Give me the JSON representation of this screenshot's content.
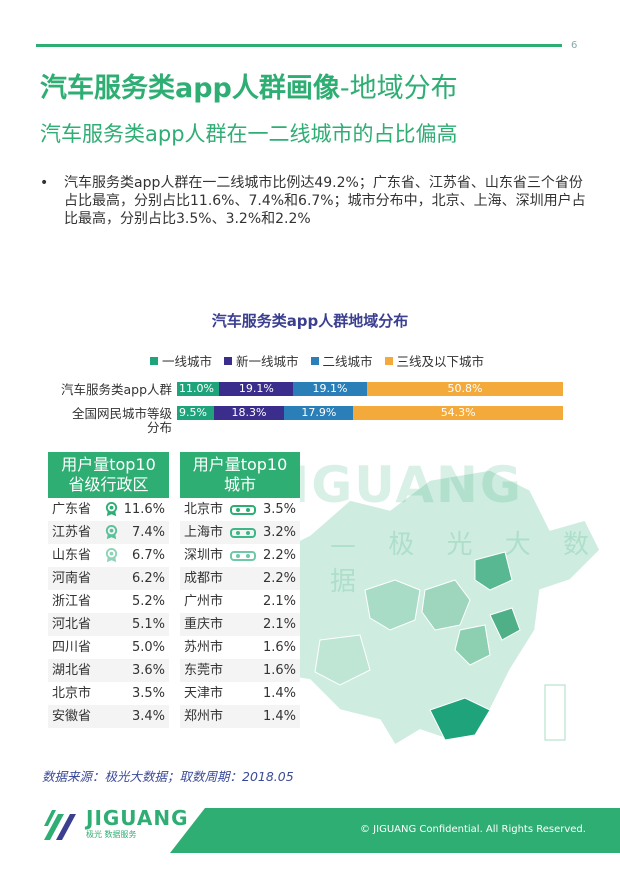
{
  "page_number": "6",
  "title_bold": "汽车服务类app人群画像",
  "title_light": "-地域分布",
  "subtitle": "汽车服务类app人群在一二线城市的占比偏高",
  "bullet_marker": "•",
  "bullet_text": "汽车服务类app人群在一二线城市比例达49.2%；广东省、江苏省、山东省三个省份占比最高，分别占比11.6%、7.4%和6.7%；城市分布中，北京、上海、深圳用户占比最高，分别占比3.5%、3.2%和2.2%",
  "watermark": {
    "text": "JIGUANG",
    "sub": "— 极 光 大 数 据"
  },
  "chart_data": {
    "type": "bar",
    "stacked": true,
    "orientation": "horizontal",
    "title": "汽车服务类app人群地域分布",
    "categories": [
      "汽车服务类app人群",
      "全国网民城市等级分布"
    ],
    "series": [
      {
        "name": "一线城市",
        "color": "#1fa37a",
        "values": [
          11.0,
          9.5
        ],
        "labels": [
          "11.0%",
          "9.5%"
        ]
      },
      {
        "name": "新一线城市",
        "color": "#3a2d8c",
        "values": [
          19.1,
          18.3
        ],
        "labels": [
          "19.1%",
          "18.3%"
        ]
      },
      {
        "name": "二线城市",
        "color": "#2a7fb9",
        "values": [
          19.1,
          17.9
        ],
        "labels": [
          "19.1%",
          "17.9%"
        ]
      },
      {
        "name": "三线及以下城市",
        "color": "#f4aa3a",
        "values": [
          50.8,
          54.3
        ],
        "labels": [
          "50.8%",
          "54.3%"
        ]
      }
    ],
    "legend_position": "top",
    "xlim": [
      0,
      100
    ]
  },
  "row_labels": [
    "汽车服务类app人群",
    "全国网民城市等级",
    "分布"
  ],
  "province_table": {
    "header_line1": "用户量top10",
    "header_line2": "省级行政区",
    "rows": [
      {
        "name": "广东省",
        "value": "11.6%",
        "medal": "gold"
      },
      {
        "name": "江苏省",
        "value": "7.4%",
        "medal": "silver"
      },
      {
        "name": "山东省",
        "value": "6.7%",
        "medal": "bronze"
      },
      {
        "name": "河南省",
        "value": "6.2%"
      },
      {
        "name": "浙江省",
        "value": "5.2%"
      },
      {
        "name": "河北省",
        "value": "5.1%"
      },
      {
        "name": "四川省",
        "value": "5.0%"
      },
      {
        "name": "湖北省",
        "value": "3.6%"
      },
      {
        "name": "北京市",
        "value": "3.5%"
      },
      {
        "name": "安徽省",
        "value": "3.4%"
      }
    ]
  },
  "city_table": {
    "header_line1": "用户量top10",
    "header_line2": "城市",
    "rows": [
      {
        "name": "北京市",
        "value": "3.5%",
        "medal": "gold"
      },
      {
        "name": "上海市",
        "value": "3.2%",
        "medal": "silver"
      },
      {
        "name": "深圳市",
        "value": "2.2%",
        "medal": "bronze"
      },
      {
        "name": "成都市",
        "value": "2.2%"
      },
      {
        "name": "广州市",
        "value": "2.1%"
      },
      {
        "name": "重庆市",
        "value": "2.1%"
      },
      {
        "name": "苏州市",
        "value": "1.6%"
      },
      {
        "name": "东莞市",
        "value": "1.6%"
      },
      {
        "name": "天津市",
        "value": "1.4%"
      },
      {
        "name": "郑州市",
        "value": "1.4%"
      }
    ]
  },
  "source": "数据来源：极光大数据；取数周期：2018.05",
  "footer": {
    "logo_text": "JIGUANG",
    "logo_sub": "极光  数据服务",
    "copyright": "© JIGUANG Confidential. All Rights Reserved."
  },
  "colors": {
    "accent": "#2fae74",
    "navy": "#3b3f8f"
  }
}
